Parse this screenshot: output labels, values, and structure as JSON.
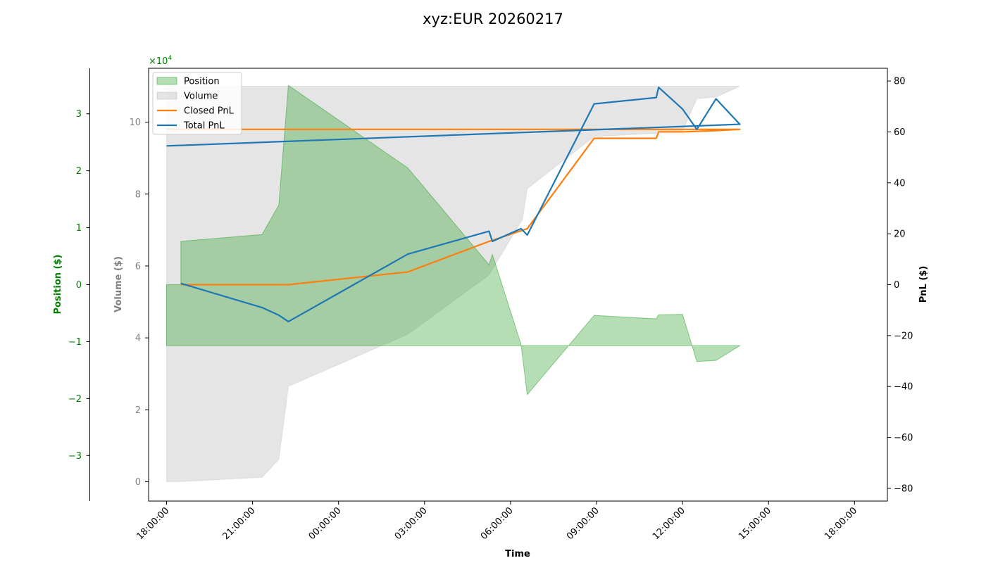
{
  "chart_data": {
    "type": "line",
    "title": "xyz:EUR 20260217",
    "xlabel": "Time",
    "x_ticks": [
      "18:00:00",
      "21:00:00",
      "00:00:00",
      "03:00:00",
      "06:00:00",
      "09:00:00",
      "12:00:00",
      "15:00:00",
      "18:00:00"
    ],
    "x_range": [
      "18:00:00",
      "18:00:00"
    ],
    "axes": {
      "position": {
        "label": "Position ($)",
        "color": "#008000",
        "range": [
          -38000,
          38000
        ],
        "ticks": [
          -3,
          -2,
          -1,
          0,
          1,
          2,
          3
        ],
        "tick_labels": [
          "−3",
          "−2",
          "−1",
          "0",
          "1",
          "2",
          "3"
        ],
        "multiplier_label": "×10",
        "multiplier_exponent": "4"
      },
      "volume": {
        "label": "Volume ($)",
        "color": "#808080",
        "range": [
          -5400,
          115000
        ],
        "ticks": [
          0,
          2,
          4,
          6,
          8,
          10
        ],
        "tick_labels": [
          "0",
          "2",
          "4",
          "6",
          "8",
          "10"
        ]
      },
      "pnl": {
        "label": "PnL ($)",
        "color": "#000000",
        "range": [
          -85,
          85
        ],
        "ticks": [
          -80,
          -60,
          -40,
          -20,
          0,
          20,
          40,
          60,
          80
        ],
        "tick_labels": [
          "−80",
          "−60",
          "−40",
          "−20",
          "0",
          "20",
          "40",
          "60",
          "80"
        ]
      }
    },
    "legend": {
      "placement": "upper-left",
      "entries": [
        {
          "name": "Position",
          "kind": "area",
          "color": "#2ca02c"
        },
        {
          "name": "Volume",
          "kind": "area",
          "color": "#bdbdbd"
        },
        {
          "name": "Closed PnL",
          "kind": "line",
          "color": "#ff7f0e"
        },
        {
          "name": "Total PnL",
          "kind": "line",
          "color": "#1f77b4"
        }
      ]
    },
    "series": [
      {
        "name": "Position",
        "axis": "position",
        "kind": "area",
        "color": "#2ca02c",
        "x": [
          "18:30",
          "21:20",
          "21:55",
          "22:15",
          "02:25",
          "05:15",
          "05:22",
          "06:22",
          "06:35",
          "08:55",
          "11:05",
          "11:10",
          "12:00",
          "12:30",
          "13:10",
          "14:00",
          "18:00"
        ],
        "values": [
          7600,
          8800,
          14000,
          35000,
          20500,
          3500,
          5300,
          -10500,
          -19300,
          -5400,
          -6000,
          -5300,
          -5200,
          -13500,
          -13300,
          -10700,
          -10700
        ]
      },
      {
        "name": "Volume",
        "axis": "volume",
        "kind": "area",
        "color": "#bdbdbd",
        "x": [
          "18:30",
          "21:20",
          "21:55",
          "22:15",
          "02:25",
          "05:15",
          "06:25",
          "06:35",
          "08:55",
          "11:05",
          "11:10",
          "12:00",
          "12:30",
          "13:10",
          "14:00",
          "18:00"
        ],
        "values": [
          0,
          1200,
          6200,
          26500,
          41000,
          57500,
          73000,
          81500,
          96000,
          96900,
          97500,
          97500,
          106500,
          107000,
          110000,
          110000
        ]
      },
      {
        "name": "Closed PnL",
        "axis": "pnl",
        "kind": "line",
        "color": "#ff7f0e",
        "x": [
          "18:30",
          "22:15",
          "02:25",
          "05:15",
          "06:35",
          "08:55",
          "11:05",
          "11:10",
          "12:00",
          "13:10",
          "14:00",
          "18:00"
        ],
        "values": [
          0,
          0,
          5,
          17,
          22,
          57.5,
          57.5,
          60,
          60,
          60.5,
          61,
          61
        ]
      },
      {
        "name": "Total PnL",
        "axis": "pnl",
        "kind": "line",
        "color": "#1f77b4",
        "x": [
          "18:30",
          "21:20",
          "21:55",
          "22:15",
          "02:25",
          "05:15",
          "05:22",
          "06:22",
          "06:35",
          "08:55",
          "11:05",
          "11:10",
          "12:00",
          "12:30",
          "13:10",
          "14:00",
          "18:00"
        ],
        "values": [
          0.5,
          -9,
          -12,
          -14.5,
          12,
          21,
          17,
          22,
          19.5,
          71,
          73.5,
          77.5,
          69,
          61,
          73,
          63,
          54.5
        ]
      }
    ],
    "grid": false
  }
}
